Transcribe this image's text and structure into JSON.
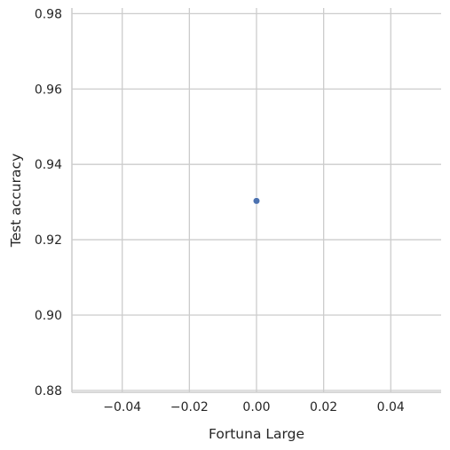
{
  "chart_data": {
    "type": "scatter",
    "xlabel": "Fortuna Large",
    "ylabel": "Test accuracy",
    "xlim": [
      -0.055,
      0.055
    ],
    "ylim": [
      0.8795,
      0.9815
    ],
    "x_ticks": [
      -0.04,
      -0.02,
      0.0,
      0.02,
      0.04
    ],
    "x_tick_labels": [
      "−0.04",
      "−0.02",
      "0.00",
      "0.02",
      "0.04"
    ],
    "y_ticks": [
      0.88,
      0.9,
      0.92,
      0.94,
      0.96,
      0.98
    ],
    "y_tick_labels": [
      "0.88",
      "0.90",
      "0.92",
      "0.94",
      "0.96",
      "0.98"
    ],
    "grid": true,
    "points": [
      {
        "x": 0.0,
        "y": 0.9303
      }
    ],
    "colors": {
      "point": "#4c72b0",
      "grid": "#cccccc",
      "axis": "#cccccc"
    }
  }
}
